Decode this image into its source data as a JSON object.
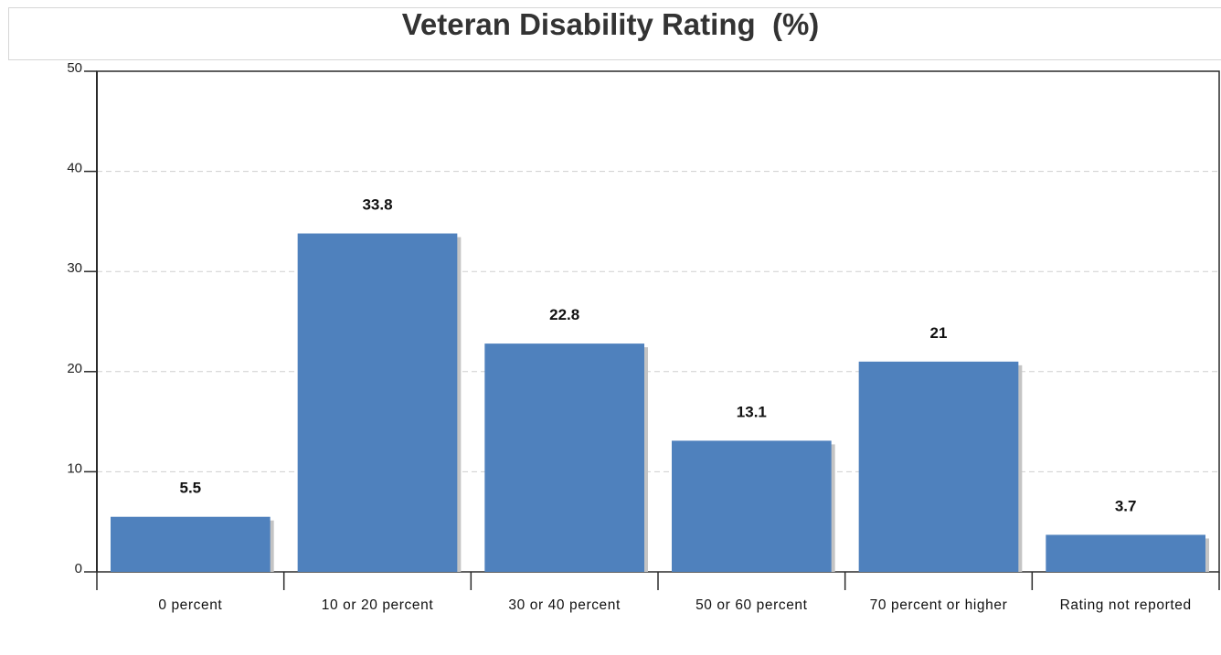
{
  "chart_data": {
    "type": "bar",
    "title": "Veteran Disability Rating  (%)",
    "xlabel": "",
    "ylabel": "",
    "categories": [
      "0 percent",
      "10 or 20 percent",
      "30 or 40 percent",
      "50 or 60 percent",
      "70 percent or higher",
      "Rating not reported"
    ],
    "values": [
      5.5,
      33.8,
      22.8,
      13.1,
      21,
      3.7
    ],
    "data_labels": [
      "5.5",
      "33.8",
      "22.8",
      "13.1",
      "21",
      "3.7"
    ],
    "ylim": [
      0,
      50
    ],
    "yticks": [
      0,
      10,
      20,
      30,
      40,
      50
    ],
    "grid": true,
    "legend": "none",
    "bar_color": "#4f81bd",
    "shadow_color": "#c4c4c4"
  }
}
